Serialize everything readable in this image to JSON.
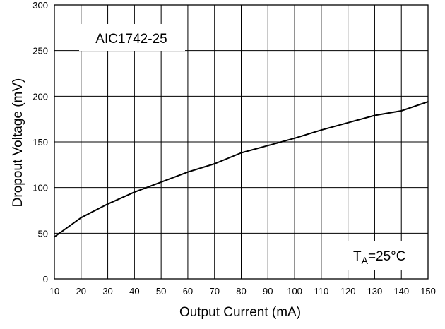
{
  "chart_data": {
    "type": "line",
    "title": "",
    "xlabel": "Output Current (mA)",
    "ylabel": "Dropout Voltage (mV)",
    "xlim": [
      10,
      150
    ],
    "ylim": [
      0,
      300
    ],
    "x_ticks": [
      10,
      20,
      30,
      40,
      50,
      60,
      70,
      80,
      90,
      100,
      110,
      120,
      130,
      140,
      150
    ],
    "y_ticks": [
      0,
      50,
      100,
      150,
      200,
      250,
      300
    ],
    "grid": true,
    "legend": "none",
    "annotations": {
      "device_label": "AIC1742-25",
      "temp_prefix": "T",
      "temp_subscript": "A",
      "temp_suffix": "=25°C"
    },
    "series": [
      {
        "x": [
          10,
          20,
          30,
          40,
          50,
          60,
          70,
          80,
          90,
          100,
          110,
          120,
          130,
          140,
          150
        ],
        "values": [
          46,
          67,
          82,
          95,
          106,
          117,
          126,
          138,
          146,
          154,
          163,
          171,
          179,
          184,
          194
        ]
      }
    ],
    "line_color": "#000000",
    "grid_color": "#000000"
  }
}
